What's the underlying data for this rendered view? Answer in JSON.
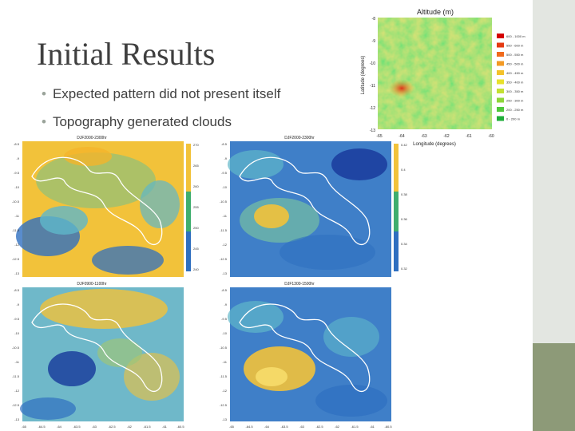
{
  "slide": {
    "title": "Initial Results",
    "bullets": [
      "Expected pattern did not present itself",
      "Topography generated clouds"
    ]
  },
  "altitude_map": {
    "title": "Altitude (m)",
    "ylabel": "Latitude (degrees)",
    "xlabel": "Longitude (degrees)",
    "lat_ticks": [
      "-8",
      "-9",
      "-10",
      "-11",
      "-12",
      "-13"
    ],
    "lon_ticks": [
      "-65",
      "-64",
      "-63",
      "-62",
      "-61",
      "-60"
    ],
    "legend": [
      {
        "label": "600 - 1000 m",
        "color": "#d40000"
      },
      {
        "label": "550 - 600 m",
        "color": "#e43a12"
      },
      {
        "label": "500 - 550 m",
        "color": "#f06a1c"
      },
      {
        "label": "450 - 500 m",
        "color": "#f39a25"
      },
      {
        "label": "400 - 450 m",
        "color": "#f4c22a"
      },
      {
        "label": "350 - 400 m",
        "color": "#e8e12c"
      },
      {
        "label": "300 - 350 m",
        "color": "#c4e033"
      },
      {
        "label": "250 - 300 m",
        "color": "#8fd63a"
      },
      {
        "label": "200 - 250 m",
        "color": "#4fc83c"
      },
      {
        "label": "0 - 200 m",
        "color": "#1fae3a"
      }
    ]
  },
  "maps": [
    {
      "title": "DJF2000-2300hr",
      "yticks": [
        "-8.5",
        "-9",
        "-9.5",
        "-10",
        "-10.5",
        "-11",
        "-11.5",
        "-12",
        "-12.5",
        "-13"
      ],
      "cbar_ticks": [
        "270",
        "265",
        "260",
        "255",
        "250",
        "245",
        "240"
      ]
    },
    {
      "title": "DJF2000-2300hr",
      "yticks": [
        "-8.5",
        "-9",
        "-9.5",
        "-10",
        "-10.5",
        "-11",
        "-11.5",
        "-12",
        "-12.5",
        "-13"
      ],
      "cbar_ticks": [
        "0.42",
        "0.4",
        "0.38",
        "0.36",
        "0.34",
        "0.32"
      ]
    },
    {
      "title": "DJF0900-1100hr",
      "yticks": [
        "-8.5",
        "-9",
        "-9.5",
        "-10",
        "-10.5",
        "-11",
        "-11.5",
        "-12",
        "-12.5",
        "-13"
      ],
      "xticks": [
        "-65",
        "-64.5",
        "-64",
        "-63.5",
        "-63",
        "-62.5",
        "-62",
        "-61.5",
        "-61",
        "-60.5"
      ]
    },
    {
      "title": "DJF1300-1500hr",
      "yticks": [
        "-8.5",
        "-9",
        "-9.5",
        "-10",
        "-10.5",
        "-11",
        "-11.5",
        "-12",
        "-12.5",
        "-13"
      ],
      "xticks": [
        "-65",
        "-64.5",
        "-64",
        "-63.5",
        "-63",
        "-62.5",
        "-62",
        "-61.5",
        "-61",
        "-60.5"
      ]
    }
  ],
  "colors": {
    "map_blue": "#2f6fc0",
    "map_yellow": "#f2c23a",
    "map_cyan": "#5fb7c9",
    "map_green": "#3fae6e",
    "sidebar": "#e3e6e1",
    "sidebar_accent": "#8d9a78"
  }
}
